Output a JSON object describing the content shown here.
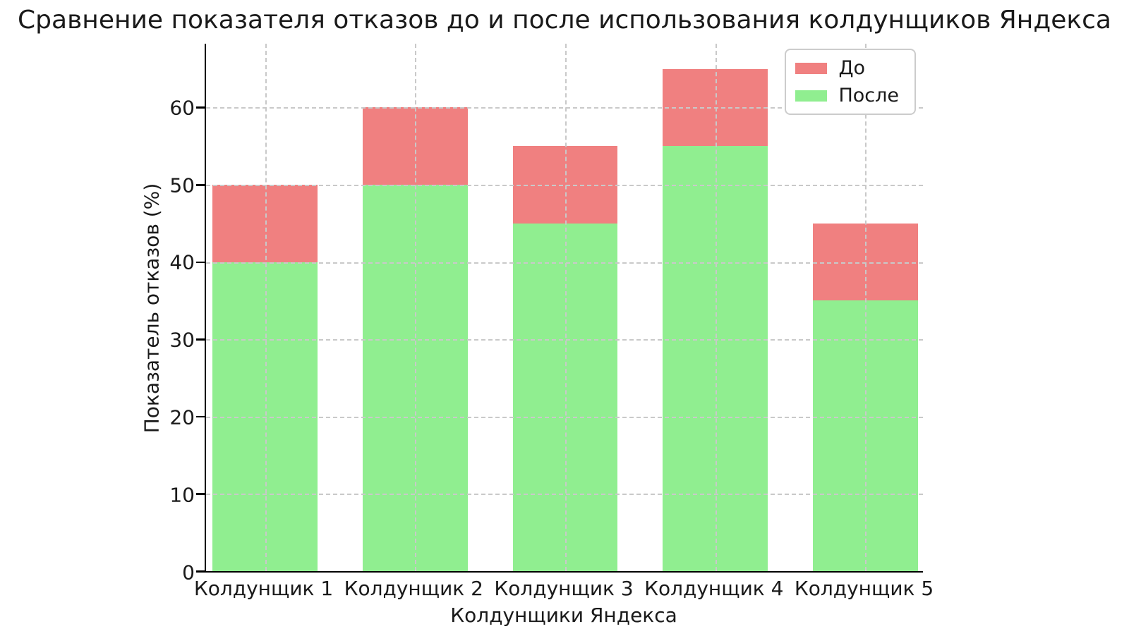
{
  "chart_data": {
    "type": "bar",
    "title": "Сравнение показателя отказов до и после использования колдунщиков Яндекса",
    "xlabel": "Колдунщики Яндекса",
    "ylabel": "Показатель отказов (%)",
    "categories": [
      "Колдунщик 1",
      "Колдунщик 2",
      "Колдунщик 3",
      "Колдунщик 4",
      "Колдунщик 5"
    ],
    "series": [
      {
        "name": "До",
        "color": "#f08080",
        "values": [
          50,
          60,
          55,
          65,
          45
        ]
      },
      {
        "name": "После",
        "color": "#90ee90",
        "values": [
          40,
          50,
          45,
          55,
          35
        ]
      }
    ],
    "ylim": [
      0,
      68.25
    ],
    "yticks": [
      0,
      10,
      20,
      30,
      40,
      50,
      60
    ],
    "xlim": [
      -0.3925,
      4.3925
    ],
    "bar_width_units": 0.7,
    "grid": "dashed",
    "grid_above_bars": true,
    "legend_position": "upper right",
    "legend_labels": [
      "До",
      "После"
    ]
  }
}
